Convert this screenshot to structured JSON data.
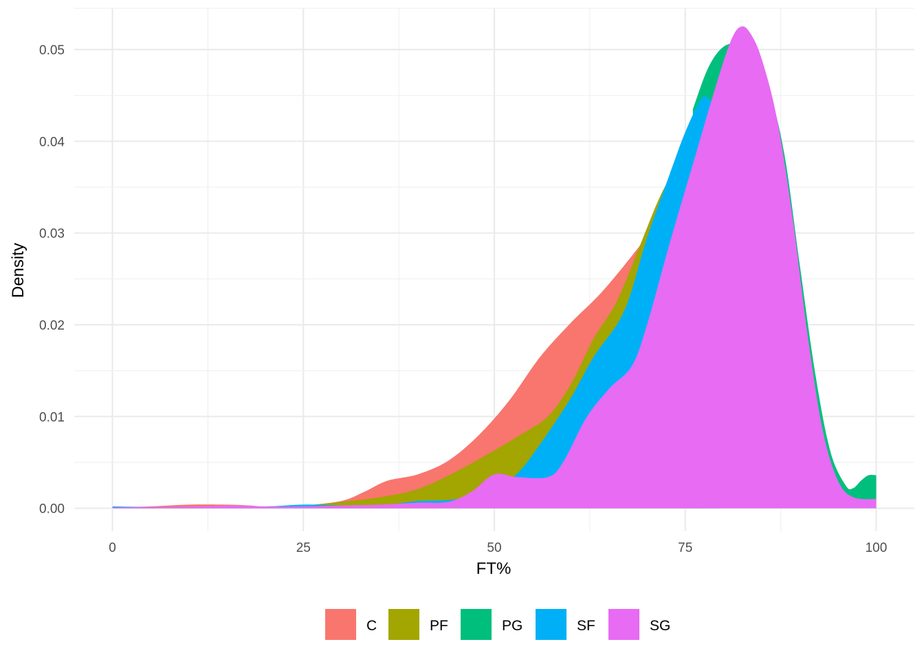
{
  "chart_data": {
    "type": "area",
    "title": "",
    "xlabel": "FT%",
    "ylabel": "Density",
    "xlim": [
      -5,
      105
    ],
    "ylim": [
      -0.0025,
      0.0545
    ],
    "x_ticks": [
      0,
      25,
      50,
      75,
      100
    ],
    "x_tick_labels": [
      "0",
      "25",
      "50",
      "75",
      "100"
    ],
    "y_ticks": [
      0,
      0.01,
      0.02,
      0.03,
      0.04,
      0.05
    ],
    "y_tick_labels": [
      "0.00",
      "0.01",
      "0.02",
      "0.03",
      "0.04",
      "0.05"
    ],
    "grid": true,
    "legend_position": "bottom",
    "series": [
      {
        "name": "C",
        "color": "#F8766D",
        "points": [
          [
            0,
            0.0001
          ],
          [
            5,
            0.0002
          ],
          [
            10,
            0.0004
          ],
          [
            15,
            0.0004
          ],
          [
            18,
            0.0003
          ],
          [
            21,
            0.0001
          ],
          [
            25,
            0.0003
          ],
          [
            30,
            0.0008
          ],
          [
            33,
            0.0018
          ],
          [
            36,
            0.003
          ],
          [
            40,
            0.0037
          ],
          [
            44,
            0.0052
          ],
          [
            48,
            0.008
          ],
          [
            52,
            0.0118
          ],
          [
            56,
            0.0165
          ],
          [
            60,
            0.0202
          ],
          [
            64,
            0.0235
          ],
          [
            68,
            0.0275
          ],
          [
            72,
            0.0318
          ],
          [
            74,
            0.0342
          ],
          [
            75,
            0.0355
          ]
        ]
      },
      {
        "name": "PF",
        "color": "#A3A500",
        "points": [
          [
            0,
            0.0001
          ],
          [
            10,
            0.0002
          ],
          [
            20,
            0.0002
          ],
          [
            25,
            0.0003
          ],
          [
            30,
            0.0007
          ],
          [
            35,
            0.0012
          ],
          [
            40,
            0.0021
          ],
          [
            45,
            0.004
          ],
          [
            50,
            0.0063
          ],
          [
            53,
            0.0078
          ],
          [
            57,
            0.01
          ],
          [
            60,
            0.0135
          ],
          [
            63,
            0.0185
          ],
          [
            66,
            0.0225
          ],
          [
            69,
            0.0285
          ],
          [
            72,
            0.0345
          ],
          [
            75,
            0.0385
          ],
          [
            77,
            0.04
          ]
        ]
      },
      {
        "name": "PG",
        "color": "#00BF7D",
        "points": [
          [
            76,
            0.0435
          ],
          [
            78,
            0.048
          ],
          [
            80,
            0.0503
          ],
          [
            82,
            0.0505
          ],
          [
            84,
            0.049
          ],
          [
            86,
            0.0455
          ],
          [
            88,
            0.0385
          ],
          [
            90,
            0.0265
          ],
          [
            92,
            0.0148
          ],
          [
            94,
            0.0062
          ],
          [
            96,
            0.0025
          ],
          [
            97,
            0.0022
          ],
          [
            98,
            0.003
          ],
          [
            99,
            0.0036
          ],
          [
            100,
            0.0036
          ]
        ]
      },
      {
        "name": "SF",
        "color": "#00B0F6",
        "points": [
          [
            0,
            0.0002
          ],
          [
            10,
            0.0001
          ],
          [
            20,
            0.0002
          ],
          [
            25,
            0.0004
          ],
          [
            30,
            0.0003
          ],
          [
            36,
            0.0004
          ],
          [
            40,
            0.0008
          ],
          [
            45,
            0.001
          ],
          [
            50,
            0.0022
          ],
          [
            53,
            0.0038
          ],
          [
            56,
            0.007
          ],
          [
            60,
            0.012
          ],
          [
            63,
            0.0165
          ],
          [
            67,
            0.0215
          ],
          [
            70,
            0.0295
          ],
          [
            73,
            0.0365
          ],
          [
            75,
            0.041
          ],
          [
            77,
            0.0445
          ],
          [
            78,
            0.0447
          ],
          [
            79.5,
            0.043
          ]
        ]
      },
      {
        "name": "SG",
        "color": "#E76BF3",
        "points": [
          [
            0,
            0.0001
          ],
          [
            10,
            0.0002
          ],
          [
            16,
            0.0003
          ],
          [
            20,
            0.0002
          ],
          [
            25,
            0.0002
          ],
          [
            30,
            0.0003
          ],
          [
            35,
            0.0004
          ],
          [
            40,
            0.0006
          ],
          [
            44,
            0.0007
          ],
          [
            47,
            0.0018
          ],
          [
            50,
            0.0037
          ],
          [
            53,
            0.0034
          ],
          [
            57,
            0.0034
          ],
          [
            59,
            0.005
          ],
          [
            62,
            0.0098
          ],
          [
            65,
            0.013
          ],
          [
            68,
            0.0155
          ],
          [
            70,
            0.02
          ],
          [
            73,
            0.029
          ],
          [
            76,
            0.0375
          ],
          [
            79,
            0.046
          ],
          [
            81,
            0.051
          ],
          [
            82.3,
            0.0525
          ],
          [
            83.5,
            0.0518
          ],
          [
            85,
            0.049
          ],
          [
            87,
            0.0425
          ],
          [
            89,
            0.032
          ],
          [
            91,
            0.019
          ],
          [
            93,
            0.0085
          ],
          [
            95,
            0.003
          ],
          [
            97,
            0.0012
          ],
          [
            100,
            0.001
          ]
        ]
      }
    ]
  }
}
